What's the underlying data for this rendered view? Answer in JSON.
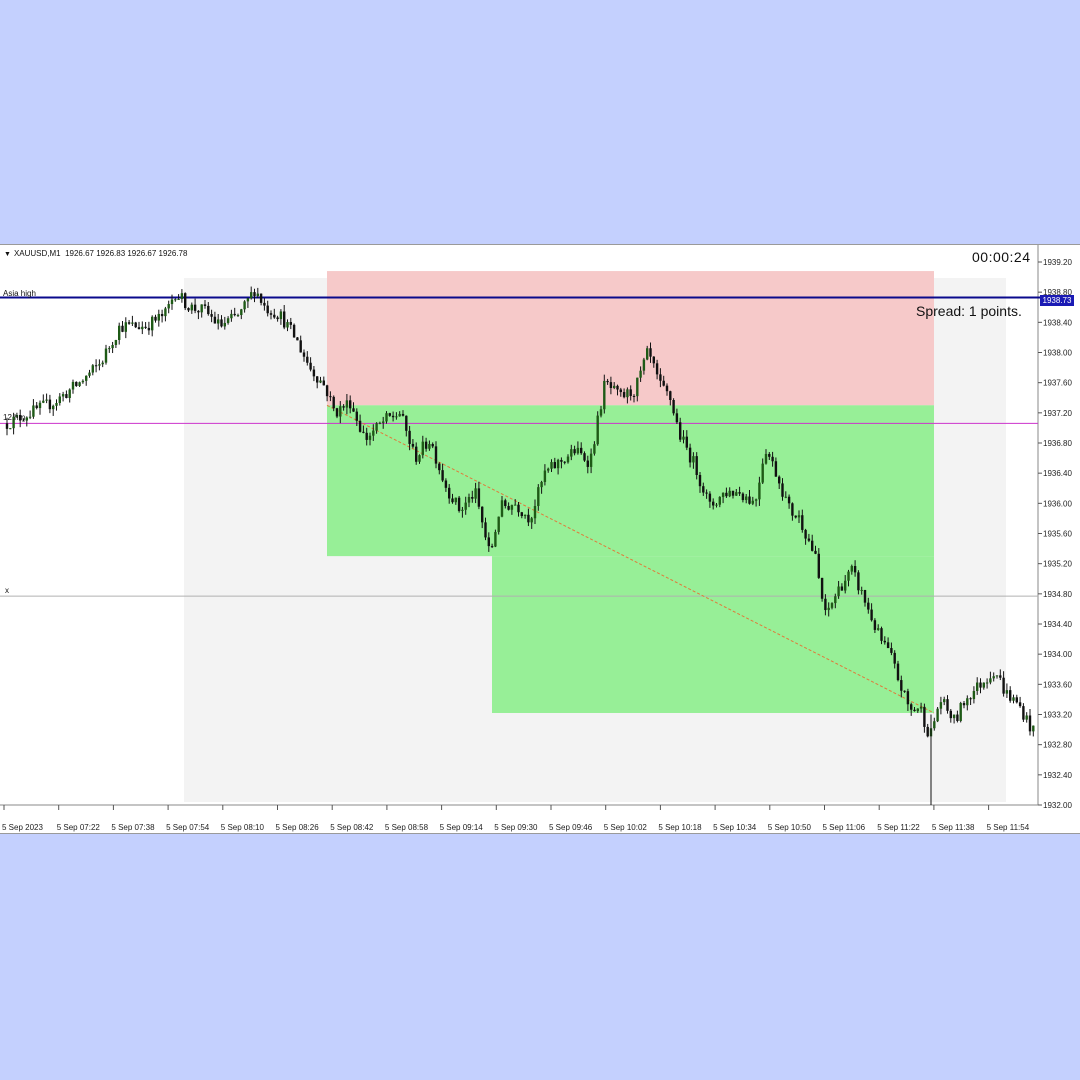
{
  "header": {
    "symbol": "XAUUSD,M1",
    "ohlc": "1926.67 1926.83 1926.67 1926.78"
  },
  "timer": "00:00:24",
  "spread": "Spread: 1 points.",
  "levels": {
    "asia_high": {
      "label": "Asia high",
      "price": 1938.73,
      "color": "#0a0a8c"
    },
    "level_12": {
      "label": "12.hm",
      "price": 1937.06,
      "color": "#cc33cc"
    },
    "level_x": {
      "label": "x",
      "price": 1934.77,
      "color": "#b0b0b0"
    }
  },
  "current_price_label": "1938.73",
  "colors": {
    "risk_zone": "#f6c9c9",
    "reward_zone": "#97ef97",
    "session_shade": "#f3f3f3",
    "candle_bull": "#1e5a16",
    "candle_bear": "#111111",
    "trend_line": "#e07a3a"
  },
  "chart_data": {
    "type": "candlestick",
    "ylim": [
      1932.0,
      1939.2
    ],
    "y_ticks": [
      "1939.20",
      "1938.80",
      "1938.40",
      "1938.00",
      "1937.60",
      "1937.20",
      "1936.80",
      "1936.40",
      "1936.00",
      "1935.60",
      "1935.20",
      "1934.80",
      "1934.40",
      "1934.00",
      "1933.60",
      "1933.20",
      "1932.80",
      "1932.40",
      "1932.00"
    ],
    "x_labels": [
      "5 Sep 2023",
      "5 Sep 07:22",
      "5 Sep 07:38",
      "5 Sep 07:54",
      "5 Sep 08:10",
      "5 Sep 08:26",
      "5 Sep 08:42",
      "5 Sep 08:58",
      "5 Sep 09:14",
      "5 Sep 09:30",
      "5 Sep 09:46",
      "5 Sep 10:02",
      "5 Sep 10:18",
      "5 Sep 10:34",
      "5 Sep 10:50",
      "5 Sep 11:06",
      "5 Sep 11:22",
      "5 Sep 11:38",
      "5 Sep 11:54"
    ],
    "price_path": [
      [
        7,
        1937.06
      ],
      [
        30,
        1937.2
      ],
      [
        55,
        1937.35
      ],
      [
        80,
        1937.6
      ],
      [
        100,
        1937.85
      ],
      [
        120,
        1938.35
      ],
      [
        145,
        1938.35
      ],
      [
        165,
        1938.5
      ],
      [
        175,
        1938.8
      ],
      [
        190,
        1938.6
      ],
      [
        205,
        1938.55
      ],
      [
        220,
        1938.35
      ],
      [
        240,
        1938.5
      ],
      [
        255,
        1938.85
      ],
      [
        265,
        1938.6
      ],
      [
        280,
        1938.5
      ],
      [
        295,
        1938.2
      ],
      [
        310,
        1937.8
      ],
      [
        325,
        1937.55
      ],
      [
        335,
        1937.2
      ],
      [
        350,
        1937.35
      ],
      [
        365,
        1936.85
      ],
      [
        385,
        1937.1
      ],
      [
        400,
        1937.2
      ],
      [
        415,
        1936.6
      ],
      [
        430,
        1936.85
      ],
      [
        445,
        1936.25
      ],
      [
        460,
        1935.9
      ],
      [
        475,
        1936.15
      ],
      [
        490,
        1935.3
      ],
      [
        500,
        1935.95
      ],
      [
        515,
        1936.0
      ],
      [
        530,
        1935.8
      ],
      [
        545,
        1936.4
      ],
      [
        560,
        1936.55
      ],
      [
        575,
        1936.7
      ],
      [
        590,
        1936.55
      ],
      [
        605,
        1937.6
      ],
      [
        620,
        1937.4
      ],
      [
        635,
        1937.5
      ],
      [
        648,
        1938.0
      ],
      [
        660,
        1937.55
      ],
      [
        670,
        1937.4
      ],
      [
        680,
        1936.9
      ],
      [
        695,
        1936.5
      ],
      [
        710,
        1935.95
      ],
      [
        725,
        1936.15
      ],
      [
        740,
        1936.15
      ],
      [
        755,
        1936.0
      ],
      [
        765,
        1936.75
      ],
      [
        775,
        1936.45
      ],
      [
        790,
        1935.9
      ],
      [
        800,
        1935.8
      ],
      [
        815,
        1935.3
      ],
      [
        825,
        1934.5
      ],
      [
        840,
        1934.9
      ],
      [
        852,
        1935.1
      ],
      [
        865,
        1934.7
      ],
      [
        880,
        1934.2
      ],
      [
        890,
        1934.0
      ],
      [
        900,
        1933.6
      ],
      [
        910,
        1933.25
      ],
      [
        920,
        1933.3
      ],
      [
        930,
        1932.9
      ],
      [
        940,
        1933.4
      ],
      [
        955,
        1933.1
      ],
      [
        965,
        1933.4
      ],
      [
        980,
        1933.6
      ],
      [
        995,
        1933.8
      ],
      [
        1005,
        1933.5
      ],
      [
        1020,
        1933.3
      ],
      [
        1036,
        1932.9
      ]
    ],
    "risk_zone": {
      "price_top": 1939.08,
      "price_bottom": 1937.3
    },
    "reward_zone_upper": {
      "price_top": 1937.3,
      "price_bottom": 1935.3
    },
    "reward_zone_lower": {
      "price_top": 1935.3,
      "price_bottom": 1933.22
    },
    "trend_line": {
      "from": 1937.3,
      "to": 1933.22
    }
  }
}
